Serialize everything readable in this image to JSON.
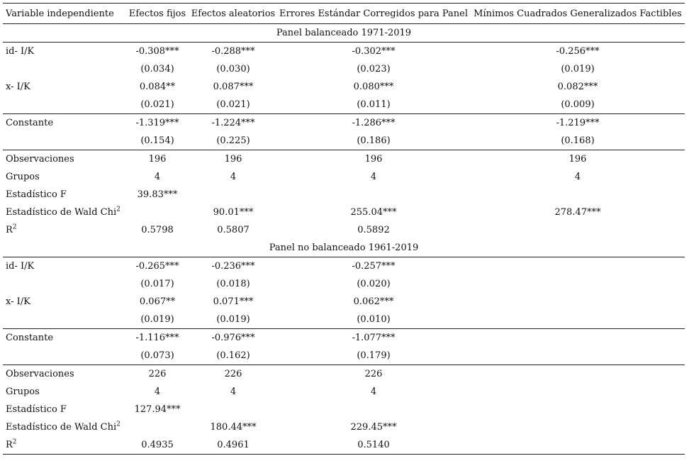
{
  "headers": {
    "variable": "Variable independiente",
    "fe": "Efectos fijos",
    "re": "Efectos aleatorios",
    "pcse": "Errores Estándar Corregidos para Panel",
    "fgls": "Mínimos Cuadrados Generalizados Factibles"
  },
  "labels": {
    "id": "id- I/K",
    "x": "x- I/K",
    "const": "Constante",
    "obs": "Observaciones",
    "groups": "Grupos",
    "f": "Estadístico F",
    "wald": "Estadístico de Wald Chi",
    "wald_sup": "2",
    "r2": "R",
    "r2_sup": "2"
  },
  "panel1": {
    "title": "Panel balanceado 1971-2019",
    "id": [
      "-0.308***",
      "-0.288***",
      "-0.302***",
      "-0.256***"
    ],
    "id_se": [
      "(0.034)",
      "(0.030)",
      "(0.023)",
      "(0.019)"
    ],
    "x": [
      "0.084**",
      "0.087***",
      "0.080***",
      "0.082***"
    ],
    "x_se": [
      "(0.021)",
      "(0.021)",
      "(0.011)",
      "(0.009)"
    ],
    "const": [
      "-1.319***",
      "-1.224***",
      "-1.286***",
      "-1.219***"
    ],
    "const_se": [
      "(0.154)",
      "(0.225)",
      "(0.186)",
      "(0.168)"
    ],
    "obs": [
      "196",
      "196",
      "196",
      "196"
    ],
    "groups": [
      "4",
      "4",
      "4",
      "4"
    ],
    "f": [
      "39.83***",
      "",
      "",
      ""
    ],
    "wald": [
      "",
      "90.01***",
      "255.04***",
      "278.47***"
    ],
    "r2": [
      "0.5798",
      "0.5807",
      "0.5892",
      ""
    ]
  },
  "panel2": {
    "title": "Panel no balanceado 1961-2019",
    "id": [
      "-0.265***",
      "-0.236***",
      "-0.257***",
      ""
    ],
    "id_se": [
      "(0.017)",
      "(0.018)",
      "(0.020)",
      ""
    ],
    "x": [
      "0.067**",
      "0.071***",
      "0.062***",
      ""
    ],
    "x_se": [
      "(0.019)",
      "(0.019)",
      "(0.010)",
      ""
    ],
    "const": [
      "-1.116***",
      "-0.976***",
      "-1.077***",
      ""
    ],
    "const_se": [
      "(0.073)",
      "(0.162)",
      "(0.179)",
      ""
    ],
    "obs": [
      "226",
      "226",
      "226",
      ""
    ],
    "groups": [
      "4",
      "4",
      "4",
      ""
    ],
    "f": [
      "127.94***",
      "",
      "",
      ""
    ],
    "wald": [
      "",
      "180.44***",
      "229.45***",
      ""
    ],
    "r2": [
      "0.4935",
      "0.4961",
      "0.5140",
      ""
    ]
  }
}
